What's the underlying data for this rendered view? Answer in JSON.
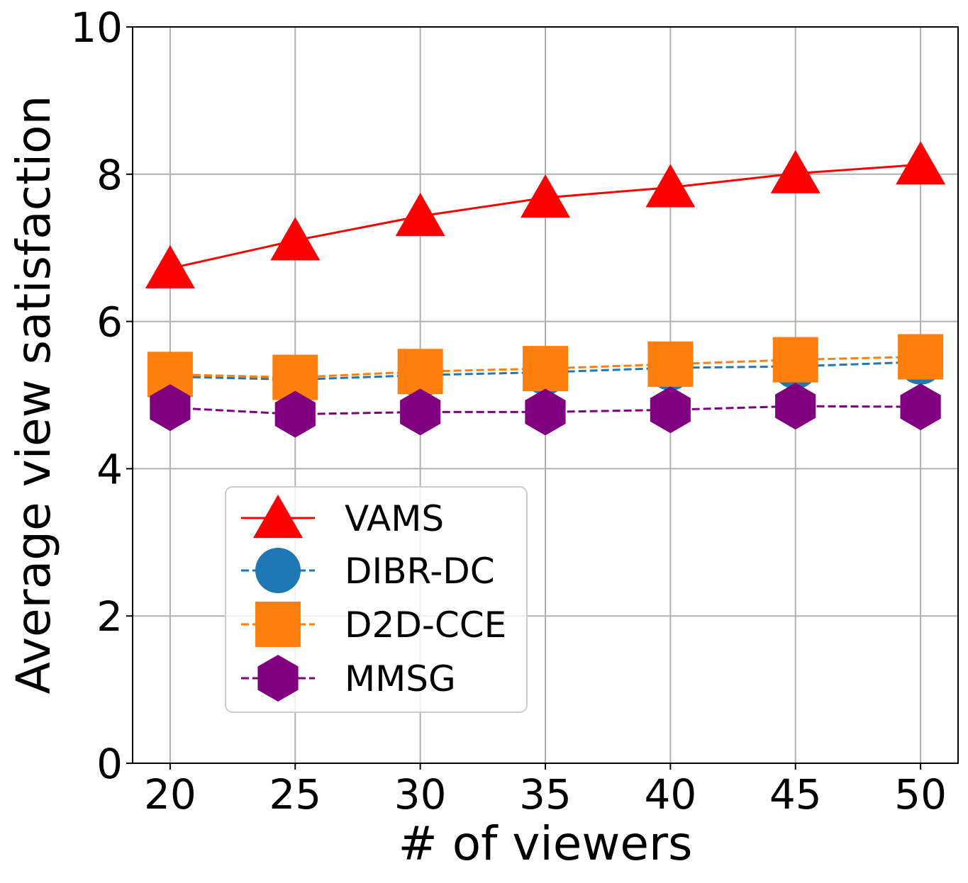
{
  "chart_data": {
    "type": "line",
    "title": "",
    "xlabel": "# of viewers",
    "ylabel": "Average view satisfaction",
    "x": [
      20,
      25,
      30,
      35,
      40,
      45,
      50
    ],
    "xticks": [
      "20",
      "25",
      "30",
      "35",
      "40",
      "45",
      "50"
    ],
    "yticks": [
      "0",
      "2",
      "4",
      "6",
      "8",
      "10"
    ],
    "xlim": [
      18.5,
      51.5
    ],
    "ylim": [
      0,
      10
    ],
    "grid": true,
    "legend_position": "lower-left",
    "series": [
      {
        "name": "VAMS",
        "values": [
          6.72,
          7.1,
          7.43,
          7.68,
          7.82,
          8.01,
          8.13
        ],
        "color": "#ff0000",
        "marker": "triangle",
        "line": "solid"
      },
      {
        "name": "DIBR-DC",
        "values": [
          5.25,
          5.21,
          5.27,
          5.31,
          5.37,
          5.39,
          5.45
        ],
        "color": "#1f77b4",
        "marker": "circle",
        "line": "dashed"
      },
      {
        "name": "D2D-CCE",
        "values": [
          5.28,
          5.24,
          5.32,
          5.36,
          5.42,
          5.48,
          5.52
        ],
        "color": "#ff7f0e",
        "marker": "square",
        "line": "dashed"
      },
      {
        "name": "MMSG",
        "values": [
          4.83,
          4.74,
          4.77,
          4.77,
          4.8,
          4.85,
          4.84
        ],
        "color": "#800080",
        "marker": "hexagon",
        "line": "dashed"
      }
    ]
  }
}
